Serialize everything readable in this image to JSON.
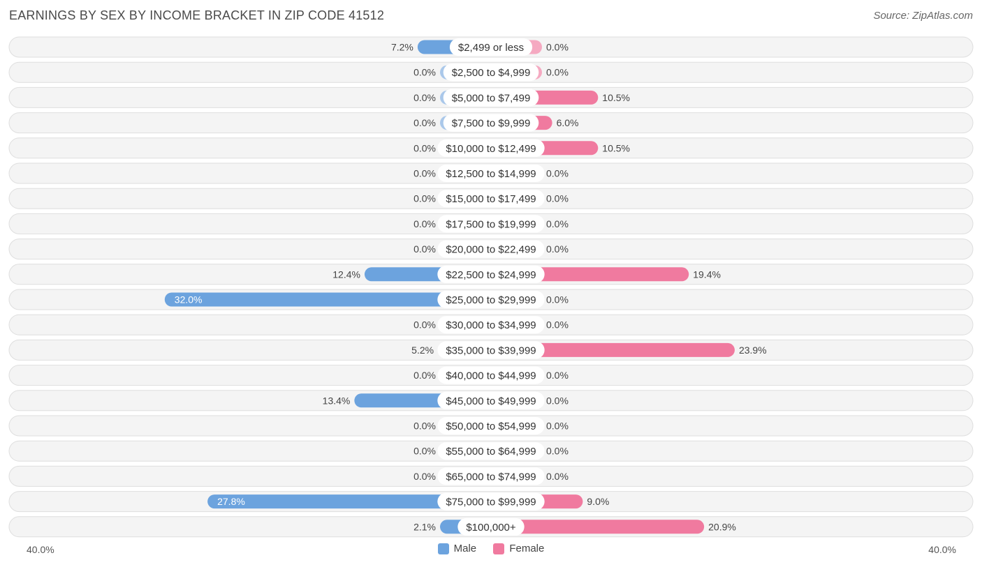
{
  "header": {
    "title": "EARNINGS BY SEX BY INCOME BRACKET IN ZIP CODE 41512",
    "source": "Source: ZipAtlas.com"
  },
  "colors": {
    "male": "#6ca3de",
    "male_light": "#aac8ea",
    "female": "#f07a9f",
    "female_light": "#f5a9c1"
  },
  "chart_data": {
    "type": "bar",
    "orientation": "horizontal-diverging",
    "title": "EARNINGS BY SEX BY INCOME BRACKET IN ZIP CODE 41512",
    "categories": [
      "$2,499 or less",
      "$2,500 to $4,999",
      "$5,000 to $7,499",
      "$7,500 to $9,999",
      "$10,000 to $12,499",
      "$12,500 to $14,999",
      "$15,000 to $17,499",
      "$17,500 to $19,999",
      "$20,000 to $22,499",
      "$22,500 to $24,999",
      "$25,000 to $29,999",
      "$30,000 to $34,999",
      "$35,000 to $39,999",
      "$40,000 to $44,999",
      "$45,000 to $49,999",
      "$50,000 to $54,999",
      "$55,000 to $64,999",
      "$65,000 to $74,999",
      "$75,000 to $99,999",
      "$100,000+"
    ],
    "series": [
      {
        "name": "Male",
        "values": [
          7.2,
          0.0,
          0.0,
          0.0,
          0.0,
          0.0,
          0.0,
          0.0,
          0.0,
          12.4,
          32.0,
          0.0,
          5.2,
          0.0,
          13.4,
          0.0,
          0.0,
          0.0,
          27.8,
          2.1
        ],
        "labels": [
          "7.2%",
          "0.0%",
          "0.0%",
          "0.0%",
          "0.0%",
          "0.0%",
          "0.0%",
          "0.0%",
          "0.0%",
          "12.4%",
          "32.0%",
          "0.0%",
          "5.2%",
          "0.0%",
          "13.4%",
          "0.0%",
          "0.0%",
          "0.0%",
          "27.8%",
          "2.1%"
        ]
      },
      {
        "name": "Female",
        "values": [
          0.0,
          0.0,
          10.5,
          6.0,
          10.5,
          0.0,
          0.0,
          0.0,
          0.0,
          19.4,
          0.0,
          0.0,
          23.9,
          0.0,
          0.0,
          0.0,
          0.0,
          0.0,
          9.0,
          20.9
        ],
        "labels": [
          "0.0%",
          "0.0%",
          "10.5%",
          "6.0%",
          "10.5%",
          "0.0%",
          "0.0%",
          "0.0%",
          "0.0%",
          "19.4%",
          "0.0%",
          "0.0%",
          "23.9%",
          "0.0%",
          "0.0%",
          "0.0%",
          "0.0%",
          "0.0%",
          "9.0%",
          "20.9%"
        ]
      }
    ],
    "xlim": [
      -40,
      40
    ],
    "axis_labels": {
      "left": "40.0%",
      "right": "40.0%"
    },
    "legend": [
      "Male",
      "Female"
    ],
    "legend_position": "bottom-center"
  }
}
